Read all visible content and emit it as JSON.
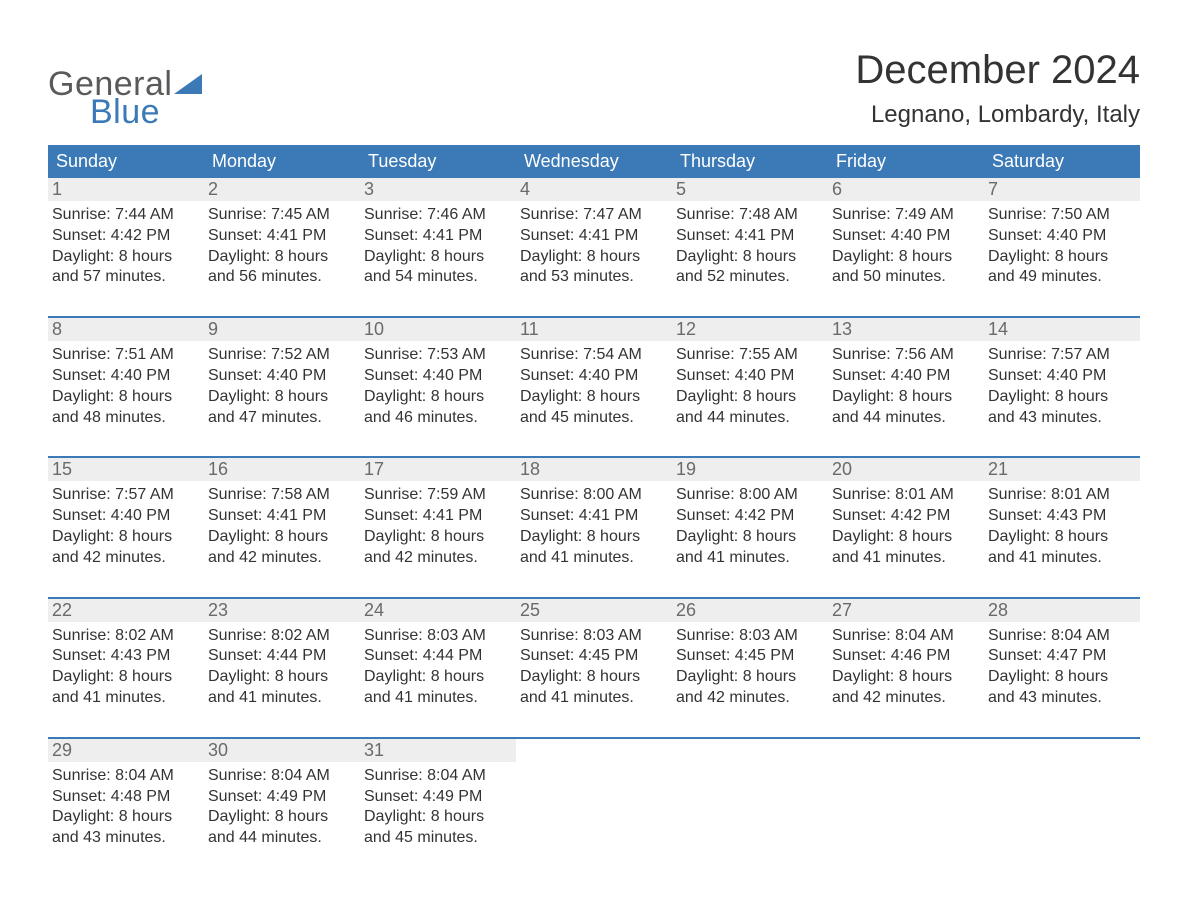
{
  "logo": {
    "text1": "General",
    "text2": "Blue"
  },
  "title": "December 2024",
  "location": "Legnano, Lombardy, Italy",
  "colors": {
    "brand_blue": "#3b79b7",
    "header_text": "#ffffff",
    "daynum_bg": "#eeeeee",
    "daynum_text": "#6a6a6a",
    "body_text": "#333333",
    "logo_gray": "#5a5a5a",
    "bg": "#ffffff"
  },
  "typography": {
    "title_fontsize": 40,
    "location_fontsize": 24,
    "dayheader_fontsize": 18,
    "daynum_fontsize": 18,
    "cell_fontsize": 16,
    "font_family": "Arial"
  },
  "day_headers": [
    "Sunday",
    "Monday",
    "Tuesday",
    "Wednesday",
    "Thursday",
    "Friday",
    "Saturday"
  ],
  "labels": {
    "sunrise": "Sunrise:",
    "sunset": "Sunset:",
    "daylight": "Daylight:"
  },
  "weeks": [
    [
      {
        "n": "1",
        "sr": "7:44 AM",
        "ss": "4:42 PM",
        "dl1": "8 hours",
        "dl2": "and 57 minutes."
      },
      {
        "n": "2",
        "sr": "7:45 AM",
        "ss": "4:41 PM",
        "dl1": "8 hours",
        "dl2": "and 56 minutes."
      },
      {
        "n": "3",
        "sr": "7:46 AM",
        "ss": "4:41 PM",
        "dl1": "8 hours",
        "dl2": "and 54 minutes."
      },
      {
        "n": "4",
        "sr": "7:47 AM",
        "ss": "4:41 PM",
        "dl1": "8 hours",
        "dl2": "and 53 minutes."
      },
      {
        "n": "5",
        "sr": "7:48 AM",
        "ss": "4:41 PM",
        "dl1": "8 hours",
        "dl2": "and 52 minutes."
      },
      {
        "n": "6",
        "sr": "7:49 AM",
        "ss": "4:40 PM",
        "dl1": "8 hours",
        "dl2": "and 50 minutes."
      },
      {
        "n": "7",
        "sr": "7:50 AM",
        "ss": "4:40 PM",
        "dl1": "8 hours",
        "dl2": "and 49 minutes."
      }
    ],
    [
      {
        "n": "8",
        "sr": "7:51 AM",
        "ss": "4:40 PM",
        "dl1": "8 hours",
        "dl2": "and 48 minutes."
      },
      {
        "n": "9",
        "sr": "7:52 AM",
        "ss": "4:40 PM",
        "dl1": "8 hours",
        "dl2": "and 47 minutes."
      },
      {
        "n": "10",
        "sr": "7:53 AM",
        "ss": "4:40 PM",
        "dl1": "8 hours",
        "dl2": "and 46 minutes."
      },
      {
        "n": "11",
        "sr": "7:54 AM",
        "ss": "4:40 PM",
        "dl1": "8 hours",
        "dl2": "and 45 minutes."
      },
      {
        "n": "12",
        "sr": "7:55 AM",
        "ss": "4:40 PM",
        "dl1": "8 hours",
        "dl2": "and 44 minutes."
      },
      {
        "n": "13",
        "sr": "7:56 AM",
        "ss": "4:40 PM",
        "dl1": "8 hours",
        "dl2": "and 44 minutes."
      },
      {
        "n": "14",
        "sr": "7:57 AM",
        "ss": "4:40 PM",
        "dl1": "8 hours",
        "dl2": "and 43 minutes."
      }
    ],
    [
      {
        "n": "15",
        "sr": "7:57 AM",
        "ss": "4:40 PM",
        "dl1": "8 hours",
        "dl2": "and 42 minutes."
      },
      {
        "n": "16",
        "sr": "7:58 AM",
        "ss": "4:41 PM",
        "dl1": "8 hours",
        "dl2": "and 42 minutes."
      },
      {
        "n": "17",
        "sr": "7:59 AM",
        "ss": "4:41 PM",
        "dl1": "8 hours",
        "dl2": "and 42 minutes."
      },
      {
        "n": "18",
        "sr": "8:00 AM",
        "ss": "4:41 PM",
        "dl1": "8 hours",
        "dl2": "and 41 minutes."
      },
      {
        "n": "19",
        "sr": "8:00 AM",
        "ss": "4:42 PM",
        "dl1": "8 hours",
        "dl2": "and 41 minutes."
      },
      {
        "n": "20",
        "sr": "8:01 AM",
        "ss": "4:42 PM",
        "dl1": "8 hours",
        "dl2": "and 41 minutes."
      },
      {
        "n": "21",
        "sr": "8:01 AM",
        "ss": "4:43 PM",
        "dl1": "8 hours",
        "dl2": "and 41 minutes."
      }
    ],
    [
      {
        "n": "22",
        "sr": "8:02 AM",
        "ss": "4:43 PM",
        "dl1": "8 hours",
        "dl2": "and 41 minutes."
      },
      {
        "n": "23",
        "sr": "8:02 AM",
        "ss": "4:44 PM",
        "dl1": "8 hours",
        "dl2": "and 41 minutes."
      },
      {
        "n": "24",
        "sr": "8:03 AM",
        "ss": "4:44 PM",
        "dl1": "8 hours",
        "dl2": "and 41 minutes."
      },
      {
        "n": "25",
        "sr": "8:03 AM",
        "ss": "4:45 PM",
        "dl1": "8 hours",
        "dl2": "and 41 minutes."
      },
      {
        "n": "26",
        "sr": "8:03 AM",
        "ss": "4:45 PM",
        "dl1": "8 hours",
        "dl2": "and 42 minutes."
      },
      {
        "n": "27",
        "sr": "8:04 AM",
        "ss": "4:46 PM",
        "dl1": "8 hours",
        "dl2": "and 42 minutes."
      },
      {
        "n": "28",
        "sr": "8:04 AM",
        "ss": "4:47 PM",
        "dl1": "8 hours",
        "dl2": "and 43 minutes."
      }
    ],
    [
      {
        "n": "29",
        "sr": "8:04 AM",
        "ss": "4:48 PM",
        "dl1": "8 hours",
        "dl2": "and 43 minutes."
      },
      {
        "n": "30",
        "sr": "8:04 AM",
        "ss": "4:49 PM",
        "dl1": "8 hours",
        "dl2": "and 44 minutes."
      },
      {
        "n": "31",
        "sr": "8:04 AM",
        "ss": "4:49 PM",
        "dl1": "8 hours",
        "dl2": "and 45 minutes."
      },
      null,
      null,
      null,
      null
    ]
  ]
}
